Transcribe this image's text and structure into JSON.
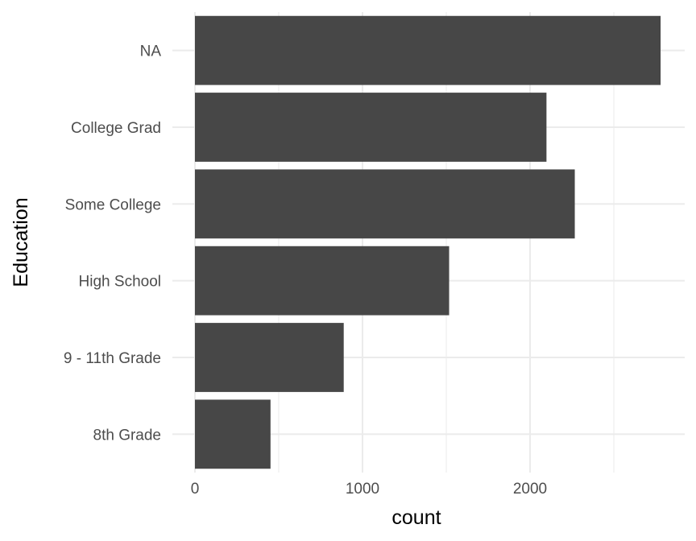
{
  "chart_data": {
    "type": "bar",
    "orientation": "horizontal",
    "title": "",
    "xlabel": "count",
    "ylabel": "Education",
    "categories": [
      "8th Grade",
      "9 - 11th Grade",
      "High School",
      "Some College",
      "College Grad",
      "NA"
    ],
    "values": [
      451,
      888,
      1517,
      2267,
      2098,
      2779
    ],
    "xlim": [
      0,
      2900
    ],
    "xticks": [
      0,
      1000,
      2000
    ],
    "xtick_labels": [
      "0",
      "1000",
      "2000"
    ],
    "minor_xticks": [
      500,
      1500,
      2500
    ],
    "grid": true,
    "legend": "none",
    "bar_color": "#474747",
    "grid_color": "#ebebeb",
    "background_color": "#ffffff"
  }
}
